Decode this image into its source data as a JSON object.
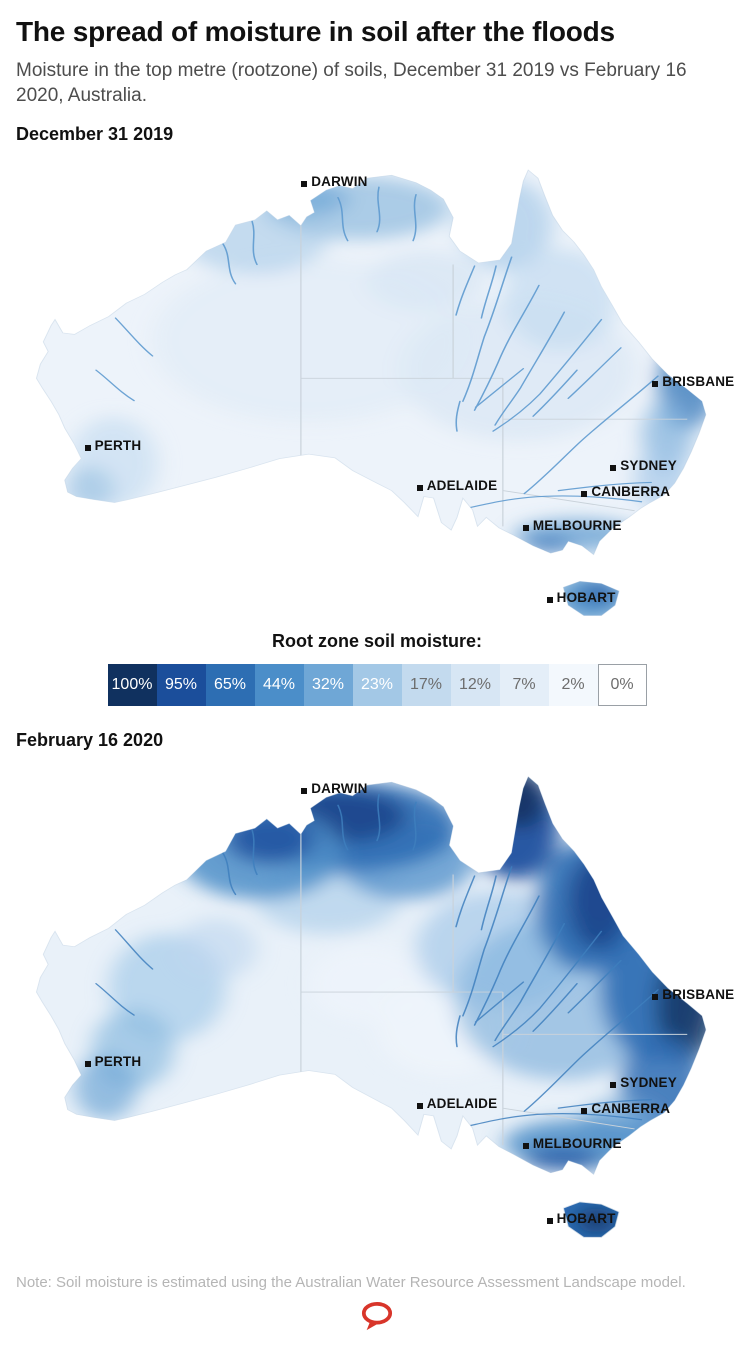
{
  "page": {
    "title": "The spread of moisture in soil after the floods",
    "subtitle": "Moisture in the top metre (rootzone) of soils, December 31 2019 vs February 16 2020, Australia.",
    "note": "Note: Soil moisture is estimated using the Australian Water Resource Assessment Landscape model."
  },
  "maps": [
    {
      "label": "December 31 2019"
    },
    {
      "label": "February 16 2020"
    }
  ],
  "cities": {
    "darwin": "DARWIN",
    "brisbane": "BRISBANE",
    "perth": "PERTH",
    "adelaide": "ADELAIDE",
    "sydney": "SYDNEY",
    "canberra": "CANBERRA",
    "melbourne": "MELBOURNE",
    "hobart": "HOBART"
  },
  "legend": {
    "title": "Root zone soil moisture:",
    "items": [
      {
        "label": "100%",
        "color": "#10315f",
        "text_color": "#ffffff"
      },
      {
        "label": "95%",
        "color": "#1b4e9b",
        "text_color": "#ffffff"
      },
      {
        "label": "65%",
        "color": "#2d6eb3",
        "text_color": "#ffffff"
      },
      {
        "label": "44%",
        "color": "#4b8ec9",
        "text_color": "#ffffff"
      },
      {
        "label": "32%",
        "color": "#6fa7d6",
        "text_color": "#ffffff"
      },
      {
        "label": "23%",
        "color": "#a3c8e6",
        "text_color": "#ffffff"
      },
      {
        "label": "17%",
        "color": "#c3daee",
        "text_color": "#6d6d6d"
      },
      {
        "label": "12%",
        "color": "#d7e6f4",
        "text_color": "#6d6d6d"
      },
      {
        "label": "7%",
        "color": "#e4eef8",
        "text_color": "#6d6d6d"
      },
      {
        "label": "2%",
        "color": "#f3f8fd",
        "text_color": "#6d6d6d"
      },
      {
        "label": "0%",
        "color": "#ffffff",
        "text_color": "#6d6d6d",
        "border": true
      }
    ]
  },
  "logo_color": "#d8352a"
}
